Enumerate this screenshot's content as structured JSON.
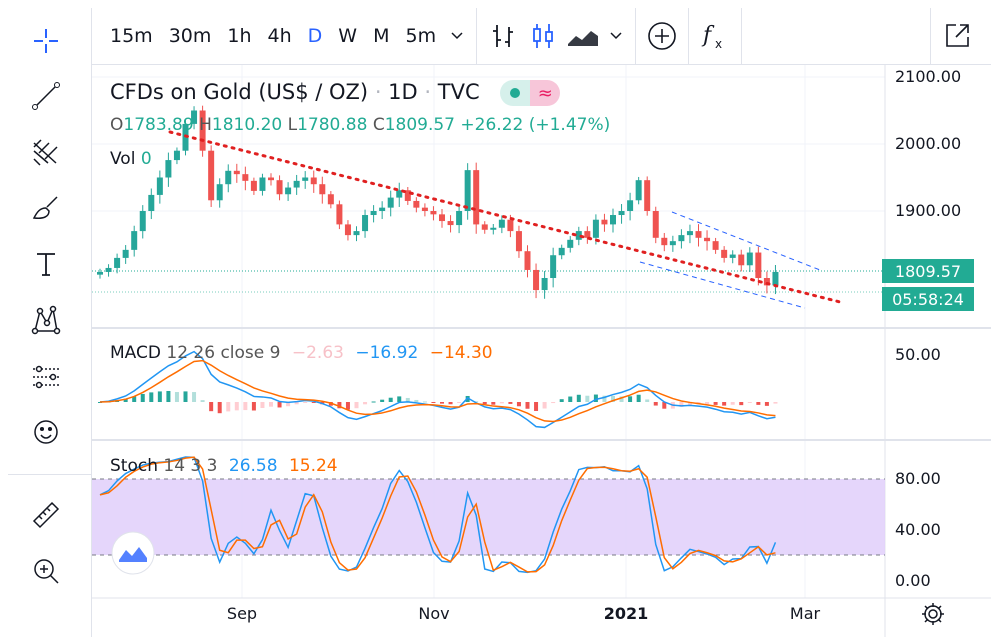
{
  "toolbar": {
    "timeframes": [
      "15m",
      "30m",
      "1h",
      "4h",
      "D",
      "W",
      "M",
      "5m"
    ],
    "active_timeframe": "D"
  },
  "symbol": {
    "title": "CFDs on Gold (US$ / OZ)",
    "interval": "1D",
    "exchange": "TVC",
    "open_label": "O",
    "open": "1783.89",
    "high_label": "H",
    "high": "1810.20",
    "low_label": "L",
    "low": "1780.88",
    "close_label": "C",
    "close": "1809.57",
    "change": "+26.22 (+1.47%)",
    "vol_label": "Vol",
    "vol": "0"
  },
  "macd": {
    "label": "MACD",
    "params": "12 26 close 9",
    "hist": "−2.63",
    "macd": "−16.92",
    "signal": "−14.30"
  },
  "stoch": {
    "label": "Stoch",
    "params": "14 3 3",
    "k": "26.58",
    "d": "15.24"
  },
  "price_axis": {
    "labels": [
      "2100.00",
      "2000.00",
      "1900.00"
    ],
    "last_price": "1809.57",
    "countdown": "05:58:24"
  },
  "macd_axis": {
    "labels": [
      "50.00"
    ]
  },
  "stoch_axis": {
    "labels": [
      "80.00",
      "40.00",
      "0.00"
    ]
  },
  "time_axis": {
    "labels": [
      "Sep",
      "Nov",
      "2021",
      "Mar"
    ]
  },
  "colors": {
    "up": "#26a69a",
    "down": "#ef5350",
    "accent": "#2962ff",
    "macd": "#2196f3",
    "signal": "#ff6d00",
    "stoch_band": "#e1cffa",
    "trend": "#e02020"
  },
  "chart_data": {
    "type": "candlestick",
    "closes": [
      1809,
      1815,
      1830,
      1842,
      1870,
      1900,
      1924,
      1950,
      1976,
      1990,
      2030,
      2050,
      1990,
      1916,
      1940,
      1960,
      1955,
      1945,
      1930,
      1950,
      1946,
      1925,
      1935,
      1945,
      1950,
      1940,
      1925,
      1910,
      1880,
      1864,
      1870,
      1894,
      1900,
      1905,
      1920,
      1931,
      1915,
      1905,
      1900,
      1895,
      1885,
      1879,
      1900,
      1961,
      1880,
      1872,
      1875,
      1887,
      1870,
      1840,
      1812,
      1782,
      1800,
      1834,
      1845,
      1857,
      1870,
      1860,
      1887,
      1880,
      1894,
      1900,
      1916,
      1946,
      1900,
      1860,
      1849,
      1855,
      1864,
      1870,
      1860,
      1855,
      1842,
      1830,
      1835,
      1819,
      1838,
      1800,
      1789,
      1809
    ],
    "price_range": [
      1700,
      2118
    ],
    "stoch_band": [
      20,
      80
    ]
  }
}
